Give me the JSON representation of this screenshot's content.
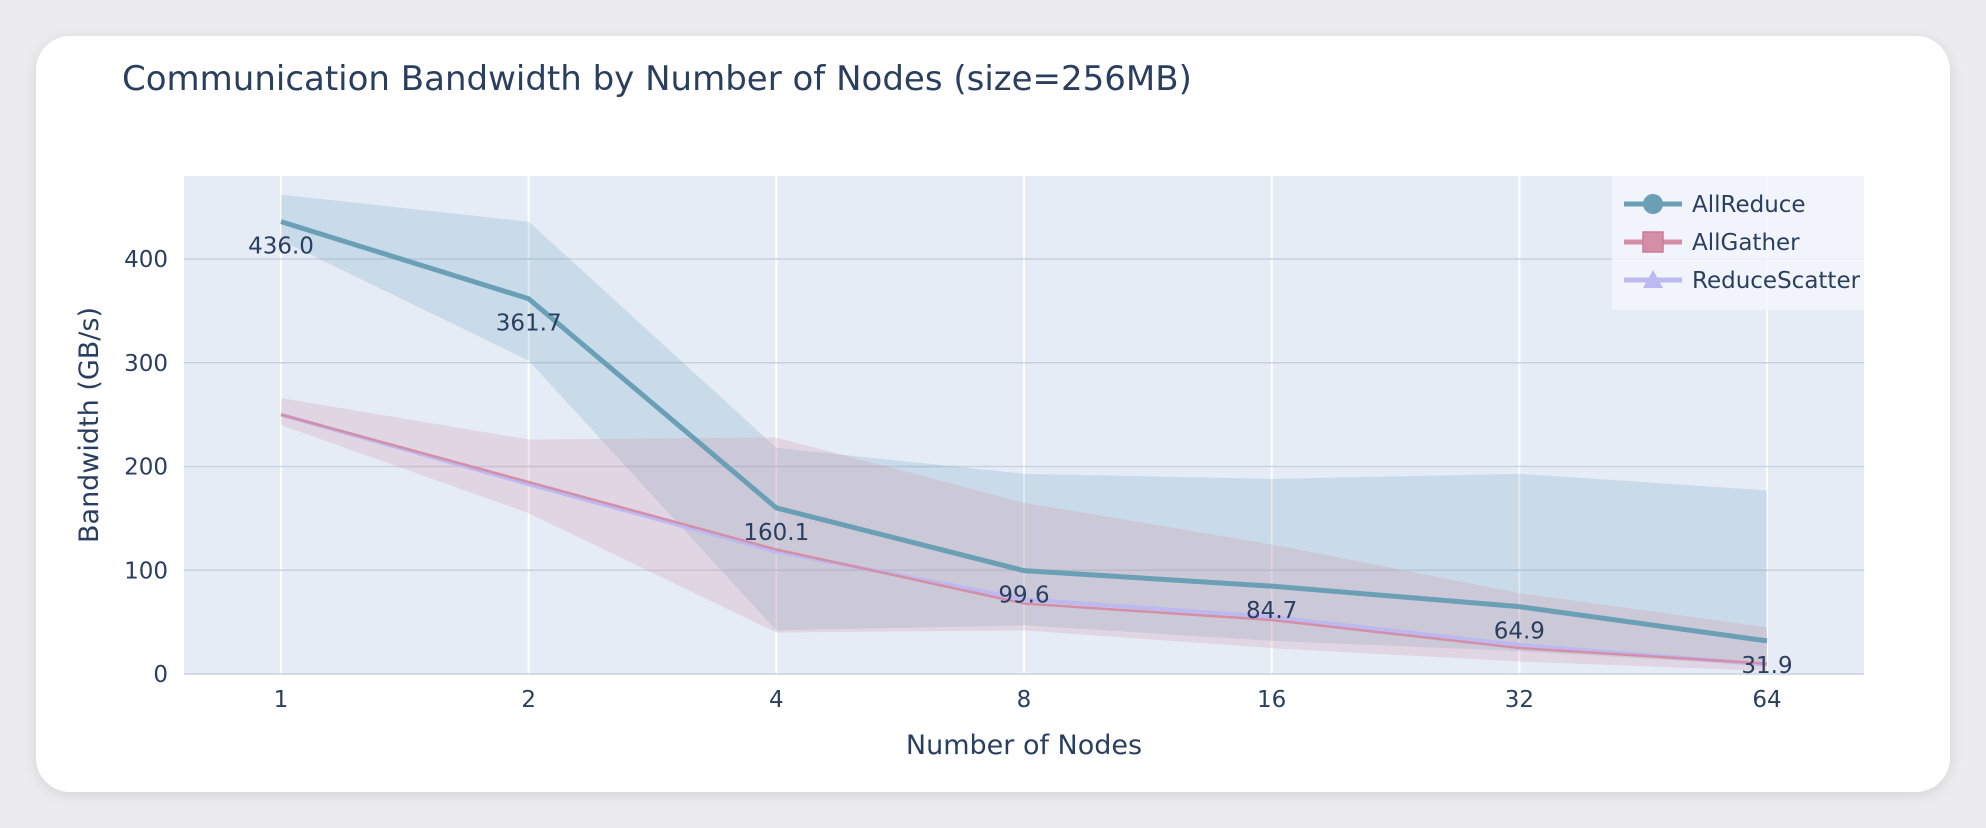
{
  "chart_data": {
    "type": "line",
    "title": "Communication Bandwidth by Number of Nodes (size=256MB)",
    "xlabel": "Number of Nodes",
    "ylabel": "Bandwidth (GB/s)",
    "categories": [
      "1",
      "2",
      "4",
      "8",
      "16",
      "32",
      "64"
    ],
    "ylim": [
      0,
      480
    ],
    "yticks": [
      0,
      100,
      200,
      300,
      400
    ],
    "grid": true,
    "legend_position": "top-right",
    "series": [
      {
        "name": "AllReduce",
        "color": "#6a9fb5",
        "marker": "circle",
        "values": [
          436.0,
          361.7,
          160.1,
          99.6,
          84.7,
          64.9,
          31.9
        ],
        "labels": [
          "436.0",
          "361.7",
          "160.1",
          "99.6",
          "84.7",
          "64.9",
          "31.9"
        ],
        "band_upper": [
          462,
          436,
          218,
          193,
          188,
          193,
          177
        ],
        "band_lower": [
          418,
          302,
          42,
          47,
          32,
          22,
          8
        ]
      },
      {
        "name": "AllGather",
        "color": "#d48fa6",
        "marker": "square",
        "values": [
          250,
          185,
          120,
          68,
          52,
          25,
          10
        ],
        "band_upper": [
          266,
          226,
          228,
          165,
          125,
          78,
          45
        ],
        "band_lower": [
          240,
          155,
          40,
          42,
          25,
          12,
          3
        ]
      },
      {
        "name": "ReduceScatter",
        "color": "#bcb8f0",
        "marker": "triangle",
        "values": [
          250,
          183,
          118,
          72,
          55,
          28,
          9
        ]
      }
    ]
  }
}
